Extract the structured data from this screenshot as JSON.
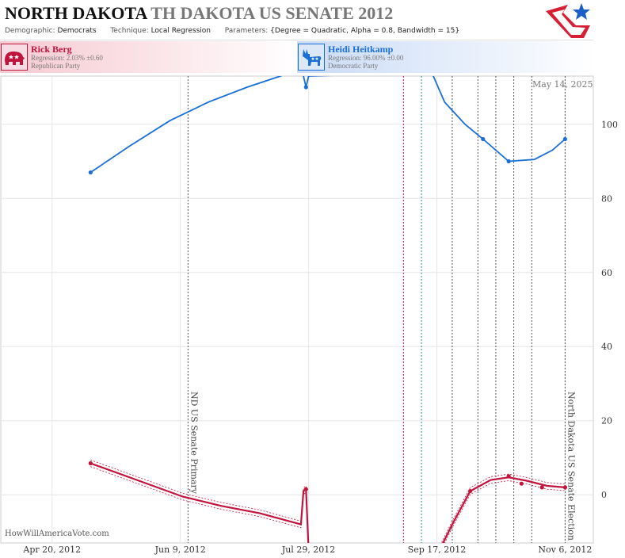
{
  "header": {
    "state": "NORTH DAKOTA",
    "race": "TH DAKOTA US SENATE 2012",
    "demographic_label": "Demographic:",
    "demographic": "Democrats",
    "technique_label": "Technique:",
    "technique": "Local Regression",
    "parameters_label": "Parameters:",
    "parameters": "{Degree = Quadratic, Alpha = 0.8, Bandwidth = 15}"
  },
  "candidates": [
    {
      "name": "Rick Berg",
      "regression": "Regression: 2.03% ±0.60",
      "party": "Republican Party",
      "color": "#c0143c",
      "icon": "elephant-icon"
    },
    {
      "name": "Heidi Heitkamp",
      "regression": "Regression: 96.00% ±0.00",
      "party": "Democratic Party",
      "color": "#1a6fd6",
      "icon": "donkey-icon"
    }
  ],
  "datestamp": "May 14, 2025",
  "credit": "HowWillAmericaVote.com",
  "chart_data": {
    "type": "line",
    "title": "NORTH DAKOTA TH DAKOTA US SENATE 2012",
    "xlabel": "",
    "ylabel": "",
    "x_ticks": [
      "Apr 20, 2012",
      "Jun 9, 2012",
      "Jul 29, 2012",
      "Sep 17, 2012",
      "Nov 6, 2012"
    ],
    "y_ticks": [
      0,
      20,
      40,
      60,
      80,
      100
    ],
    "ylim": [
      -13,
      113
    ],
    "xlim": [
      "2012-03-31",
      "2012-11-17"
    ],
    "grid": true,
    "y_axis_position": "right",
    "series": [
      {
        "name": "Heidi Heitkamp",
        "color": "#1a6fd6",
        "curve": [
          [
            "2012-05-05",
            87
          ],
          [
            "2012-05-20",
            94
          ],
          [
            "2012-06-05",
            101
          ],
          [
            "2012-06-20",
            106
          ],
          [
            "2012-07-05",
            110
          ],
          [
            "2012-07-18",
            113
          ],
          [
            "2012-07-26",
            115
          ],
          [
            "2012-07-27",
            113
          ],
          [
            "2012-07-28",
            110
          ],
          [
            "2012-07-29",
            113
          ],
          [
            "2012-09-15",
            114
          ],
          [
            "2012-09-20",
            106
          ],
          [
            "2012-09-28",
            100
          ],
          [
            "2012-10-05",
            96
          ],
          [
            "2012-10-15",
            90
          ],
          [
            "2012-10-25",
            90.5
          ],
          [
            "2012-11-01",
            93
          ],
          [
            "2012-11-06",
            96
          ]
        ],
        "points": [
          [
            "2012-05-05",
            87
          ],
          [
            "2012-07-28",
            110
          ],
          [
            "2012-10-05",
            96
          ],
          [
            "2012-10-15",
            90
          ],
          [
            "2012-11-06",
            96
          ]
        ]
      },
      {
        "name": "Rick Berg",
        "color": "#c0143c",
        "curve": [
          [
            "2012-05-05",
            8.5
          ],
          [
            "2012-05-25",
            3.5
          ],
          [
            "2012-06-10",
            -0.5
          ],
          [
            "2012-06-25",
            -3
          ],
          [
            "2012-07-10",
            -5
          ],
          [
            "2012-07-26",
            -8
          ],
          [
            "2012-07-27",
            1
          ],
          [
            "2012-07-28",
            1.5
          ],
          [
            "2012-07-29",
            -15
          ],
          [
            "2012-09-18",
            -15
          ],
          [
            "2012-09-23",
            -8
          ],
          [
            "2012-09-30",
            1
          ],
          [
            "2012-10-08",
            4
          ],
          [
            "2012-10-15",
            4.7
          ],
          [
            "2012-10-22",
            3.8
          ],
          [
            "2012-10-30",
            2.4
          ],
          [
            "2012-11-06",
            2.0
          ]
        ],
        "points": [
          [
            "2012-05-05",
            8.5
          ],
          [
            "2012-07-28",
            1.5
          ],
          [
            "2012-09-30",
            1
          ],
          [
            "2012-10-15",
            5
          ],
          [
            "2012-10-20",
            3
          ],
          [
            "2012-10-28",
            2
          ],
          [
            "2012-11-06",
            2
          ]
        ]
      }
    ],
    "event_lines": [
      {
        "date": "2012-06-12",
        "label": "ND US Senate Primary",
        "color": "#555"
      },
      {
        "date": "2012-09-04",
        "label": "",
        "color": "#c0143c"
      },
      {
        "date": "2012-09-11",
        "label": "",
        "color": "#1a8aa0"
      },
      {
        "date": "2012-09-23",
        "label": "",
        "color": "#555"
      },
      {
        "date": "2012-10-03",
        "label": "",
        "color": "#555"
      },
      {
        "date": "2012-10-10",
        "label": "",
        "color": "#555"
      },
      {
        "date": "2012-10-17",
        "label": "",
        "color": "#555"
      },
      {
        "date": "2012-10-24",
        "label": "",
        "color": "#555"
      },
      {
        "date": "2012-11-06",
        "label": "North Dakota US Senate Election",
        "color": "#555"
      }
    ]
  }
}
